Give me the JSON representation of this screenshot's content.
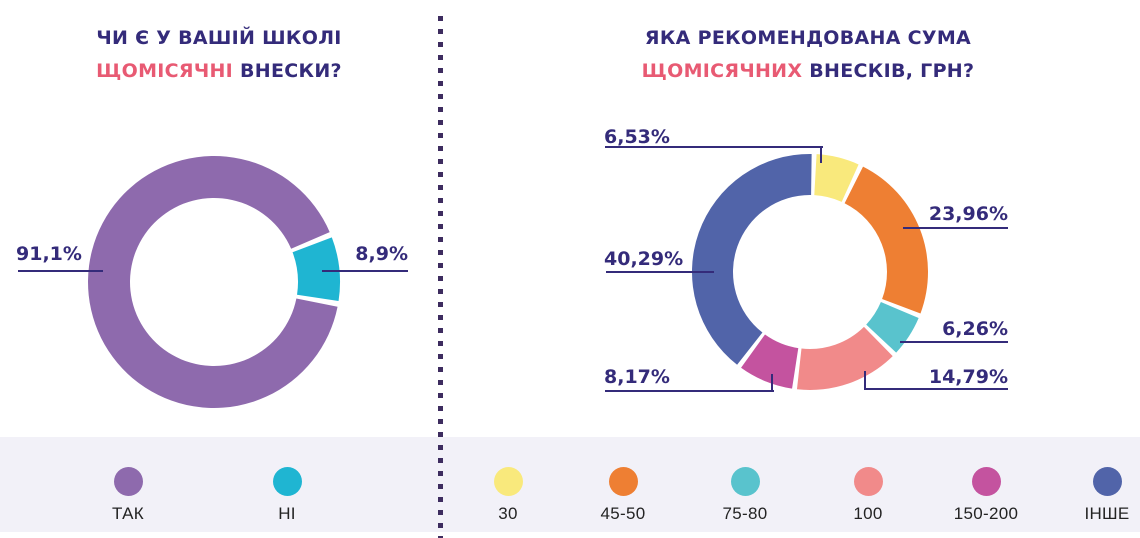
{
  "page": {
    "background": "#ffffff"
  },
  "colors": {
    "title_navy": "#342b7a",
    "title_accent_pink": "#e85a73",
    "connector_line": "#342b7a",
    "divider_dot": "#3d2c5f",
    "legend_bg": "#f2f1f8",
    "legend_text": "#232323"
  },
  "chart_data": [
    {
      "type": "donut",
      "position": "left",
      "title_line1": "ЧИ Є У ВАШІЙ ШКОЛІ",
      "title_accent": "ЩОМІСЯЧНІ",
      "title_rest": " ВНЕСКИ?",
      "slices": [
        {
          "label": "ТАК",
          "value": 91.1,
          "display": "91,1%",
          "color": "#8e6aad"
        },
        {
          "label": "НІ",
          "value": 8.9,
          "display": "8,9%",
          "color": "#1fb5d2"
        }
      ]
    },
    {
      "type": "donut",
      "position": "right",
      "title_line1": "ЯКА РЕКОМЕНДОВАНА СУМА",
      "title_accent": "ЩОМІСЯЧНИХ",
      "title_rest": " ВНЕСКІВ, ГРН?",
      "slices": [
        {
          "label": "30",
          "value": 6.53,
          "display": "6,53%",
          "color": "#f9e97c"
        },
        {
          "label": "45-50",
          "value": 23.96,
          "display": "23,96%",
          "color": "#ee7f33"
        },
        {
          "label": "75-80",
          "value": 6.26,
          "display": "6,26%",
          "color": "#59c3cd"
        },
        {
          "label": "100",
          "value": 14.79,
          "display": "14,79%",
          "color": "#f18a8a"
        },
        {
          "label": "150-200",
          "value": 8.17,
          "display": "8,17%",
          "color": "#c4539f"
        },
        {
          "label": "ІНШЕ",
          "value": 40.29,
          "display": "40,29%",
          "color": "#5164a9"
        }
      ]
    }
  ]
}
